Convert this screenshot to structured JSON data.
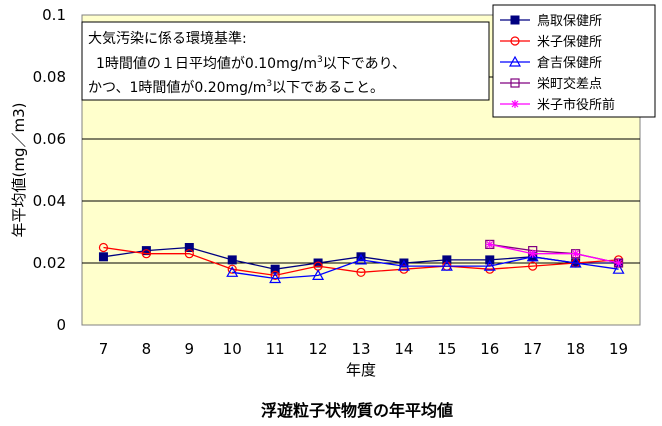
{
  "chart_data": {
    "type": "line",
    "title": "浮遊粒子状物質の年平均値",
    "xlabel": "年度",
    "ylabel": "年平均値(mg／m3)",
    "categories": [
      "7",
      "8",
      "9",
      "10",
      "11",
      "12",
      "13",
      "14",
      "15",
      "16",
      "17",
      "18",
      "19"
    ],
    "ylim": [
      0,
      0.1
    ],
    "yticks": [
      "0",
      "0.02",
      "0.04",
      "0.06",
      "0.08",
      "0.1"
    ],
    "grid": true,
    "legend_position": "top-right",
    "note": {
      "line1": "大気汚染に係る環境基準:",
      "line2a": "1時間値の１日平均値が0.10mg/m",
      "line2sup": "3",
      "line2b": "以下であり、",
      "line3a": "かつ、1時間値が0.20mg/m",
      "line3sup": "3",
      "line3b": "以下であること。"
    },
    "series": [
      {
        "name": "鳥取保健所",
        "color": "#000080",
        "marker": "square-filled",
        "values": [
          0.022,
          0.024,
          0.025,
          0.021,
          0.018,
          0.02,
          0.022,
          0.02,
          0.021,
          0.021,
          0.022,
          0.02,
          0.02
        ]
      },
      {
        "name": "米子保健所",
        "color": "#ff0000",
        "marker": "circle",
        "values": [
          0.025,
          0.023,
          0.023,
          0.018,
          0.016,
          0.019,
          0.017,
          0.018,
          0.019,
          0.018,
          0.019,
          0.02,
          0.021
        ]
      },
      {
        "name": "倉吉保健所",
        "color": "#0000ff",
        "marker": "triangle",
        "values": [
          null,
          null,
          null,
          0.017,
          0.015,
          0.016,
          0.021,
          0.019,
          0.019,
          0.019,
          0.022,
          0.02,
          0.018
        ]
      },
      {
        "name": "栄町交差点",
        "color": "#800080",
        "marker": "square-open",
        "values": [
          null,
          null,
          null,
          null,
          null,
          null,
          null,
          null,
          null,
          0.026,
          0.024,
          0.023,
          0.02
        ]
      },
      {
        "name": "米子市役所前",
        "color": "#ff00ff",
        "marker": "asterisk",
        "values": [
          null,
          null,
          null,
          null,
          null,
          null,
          null,
          null,
          null,
          0.026,
          0.023,
          0.023,
          0.02
        ]
      }
    ]
  }
}
